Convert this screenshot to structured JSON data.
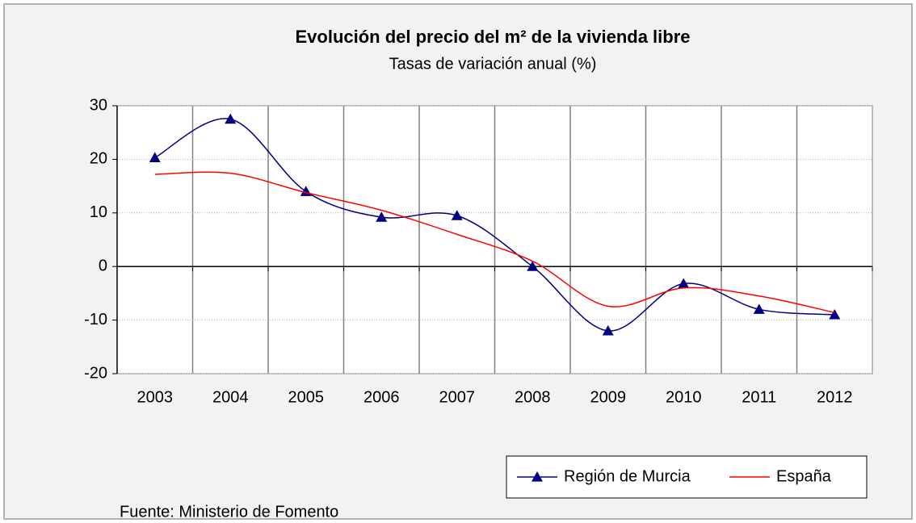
{
  "chart_data": {
    "type": "line",
    "title": "Evolución del precio del m² de la vivienda libre",
    "subtitle": "Tasas de variación anual (%)",
    "source": "Fuente: Ministerio de Fomento",
    "categories": [
      "2003",
      "2004",
      "2005",
      "2006",
      "2007",
      "2008",
      "2009",
      "2010",
      "2011",
      "2012"
    ],
    "series": [
      {
        "name": "Región de Murcia",
        "color": "#000080",
        "marker": "triangle",
        "values": [
          20.3,
          27.5,
          14,
          9.2,
          9.5,
          0,
          -12,
          -3.2,
          -8,
          -9
        ]
      },
      {
        "name": "España",
        "color": "#ff0000",
        "values": [
          17.2,
          17.4,
          13.8,
          10.5,
          6,
          1,
          -7.4,
          -4,
          -5.5,
          -8.6
        ]
      }
    ],
    "ylim": [
      -20,
      30
    ],
    "yticks": [
      -20,
      -10,
      0,
      10,
      20,
      30
    ],
    "grid": true,
    "smooth": true,
    "legend": "bottom-right"
  }
}
